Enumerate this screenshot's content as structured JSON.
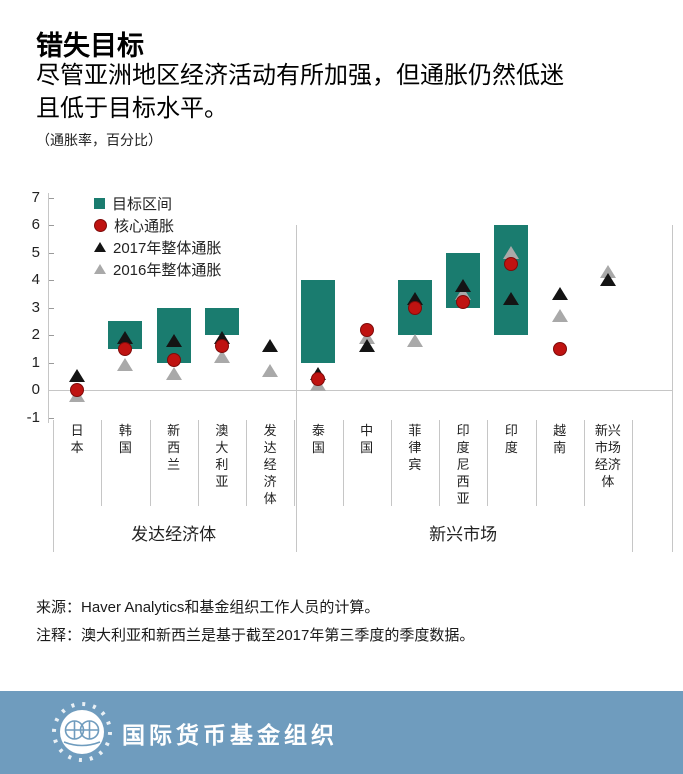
{
  "title": "错失目标",
  "subtitle_line1": "尽管亚洲地区经济活动有所加强，但通胀仍然低迷",
  "subtitle_line2": "且低于目标水平。",
  "units_note": "（通胀率，百分比）",
  "legend": {
    "target": "目标区间",
    "core": "核心通胀",
    "h2017": "2017年整体通胀",
    "h2016": "2016年整体通胀"
  },
  "source_line": "来源：Haver Analytics和基金组织工作人员的计算。",
  "note_line": "注释：澳大利亚和新西兰是基于截至2017年第三季度的季度数据。",
  "footer": {
    "org_name": "国际货币基金组织",
    "logo_icon": "imf-globe-logo",
    "background": "#6f9cbe"
  },
  "colors": {
    "target_band": "#1a7c6f",
    "core": "#bf1311",
    "headline_2017": "#141414",
    "headline_2016": "#a9a9a9",
    "grid": "#c6c6c6"
  },
  "chart_data": {
    "type": "bar",
    "subtype": "floating target-range bars with scatter markers",
    "title": "错失目标",
    "ylabel": "通胀率（百分比）",
    "ylim": [
      -1,
      7
    ],
    "yticks": [
      7,
      6,
      5,
      4,
      3,
      2,
      1,
      0,
      -1
    ],
    "grid": "zero baseline only",
    "legend_position": "top-left inside plot",
    "categories": [
      "日本",
      "韩国",
      "新西兰",
      "澳大利亚",
      "发达经济体",
      "泰国",
      "中国",
      "菲律宾",
      "印度尼西亚",
      "印度",
      "越南",
      "新兴市场经济体"
    ],
    "groups": [
      {
        "label": "发达经济体",
        "from": "日本",
        "to": "发达经济体"
      },
      {
        "label": "新兴市场",
        "from": "泰国",
        "to": "新兴市场经济体"
      }
    ],
    "series": [
      {
        "name": "目标区间",
        "type": "range-bar",
        "low": [
          null,
          1.5,
          1,
          2,
          null,
          1,
          null,
          2,
          3,
          2,
          null,
          null
        ],
        "high": [
          null,
          2.5,
          3,
          3,
          null,
          4,
          null,
          4,
          5,
          6,
          null,
          null
        ]
      },
      {
        "name": "核心通胀",
        "type": "scatter",
        "marker": "circle",
        "values": [
          0,
          1.5,
          1.1,
          1.6,
          null,
          0.4,
          2.2,
          3.0,
          3.2,
          4.6,
          1.5,
          null
        ]
      },
      {
        "name": "2017年整体通胀",
        "type": "scatter",
        "marker": "triangle",
        "values": [
          0.5,
          1.9,
          1.8,
          1.9,
          1.6,
          0.6,
          1.6,
          3.3,
          3.8,
          3.3,
          3.5,
          4.0
        ]
      },
      {
        "name": "2016年整体通胀",
        "type": "scatter",
        "marker": "triangle",
        "values": [
          -0.2,
          0.9,
          0.6,
          1.2,
          0.7,
          0.2,
          1.9,
          1.8,
          3.5,
          5.0,
          2.7,
          4.3
        ]
      }
    ]
  }
}
